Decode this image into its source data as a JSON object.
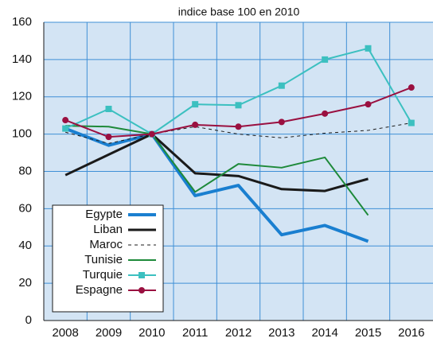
{
  "chart_data": {
    "type": "line",
    "title": "indice base 100 en 2010",
    "categories": [
      "2008",
      "2009",
      "2010",
      "2011",
      "2012",
      "2013",
      "2014",
      "2015",
      "2016"
    ],
    "ylim": [
      0,
      160
    ],
    "yticks": [
      0,
      20,
      40,
      60,
      80,
      100,
      120,
      140,
      160
    ],
    "grid": true,
    "legend": "lower left",
    "series": [
      {
        "name": "Egypte",
        "color": "#1a7fd0",
        "linewidth": 4,
        "values": [
          103,
          94,
          100,
          67,
          72.5,
          46,
          51,
          42.5,
          null
        ]
      },
      {
        "name": "Liban",
        "color": "#1a1a1a",
        "linewidth": 3,
        "values": [
          78,
          89,
          100,
          79,
          77.5,
          70.5,
          69.5,
          76,
          null
        ]
      },
      {
        "name": "Maroc",
        "color": "#1a1a1a",
        "linewidth": 1,
        "dashed": true,
        "values": [
          101,
          95,
          100,
          104,
          100,
          98,
          100.5,
          102,
          106
        ]
      },
      {
        "name": "Tunisie",
        "color": "#1e8a3a",
        "linewidth": 2,
        "values": [
          104.5,
          104,
          100,
          69,
          84,
          82,
          87.5,
          56.5,
          null
        ]
      },
      {
        "name": "Turquie",
        "color": "#3cc0c0",
        "linewidth": 2,
        "marker": "square",
        "values": [
          103,
          113.5,
          100,
          116,
          115.5,
          126,
          140,
          146,
          106
        ]
      },
      {
        "name": "Espagne",
        "color": "#9a1040",
        "linewidth": 2,
        "marker": "circle",
        "values": [
          107.5,
          98.5,
          100,
          105,
          104,
          106.5,
          111,
          116,
          125
        ]
      }
    ]
  }
}
